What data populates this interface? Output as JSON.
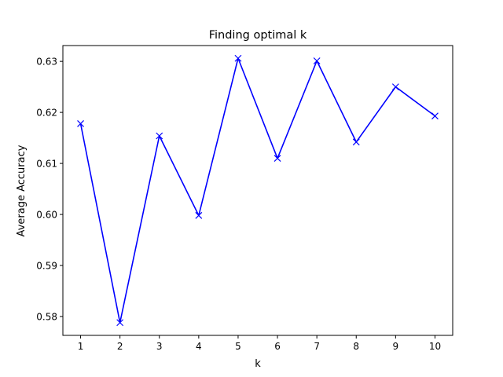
{
  "chart_data": {
    "type": "line",
    "title": "Finding optimal k",
    "xlabel": "k",
    "ylabel": "Average Accuracy",
    "x": [
      1,
      2,
      3,
      4,
      5,
      6,
      7,
      8,
      9,
      10
    ],
    "series": [
      {
        "values": [
          0.6178,
          0.5788,
          0.6154,
          0.5998,
          0.6306,
          0.611,
          0.6301,
          0.6142,
          0.625,
          0.6193
        ]
      }
    ],
    "xticks": [
      "1",
      "2",
      "3",
      "4",
      "5",
      "6",
      "7",
      "8",
      "9",
      "10"
    ],
    "yticks": [
      "0.58",
      "0.59",
      "0.60",
      "0.61",
      "0.62",
      "0.63"
    ],
    "xlim": [
      0.55,
      10.45
    ],
    "ylim": [
      0.5763,
      0.6331
    ],
    "grid": false,
    "marker": "x",
    "line_color": "#0000ff"
  }
}
